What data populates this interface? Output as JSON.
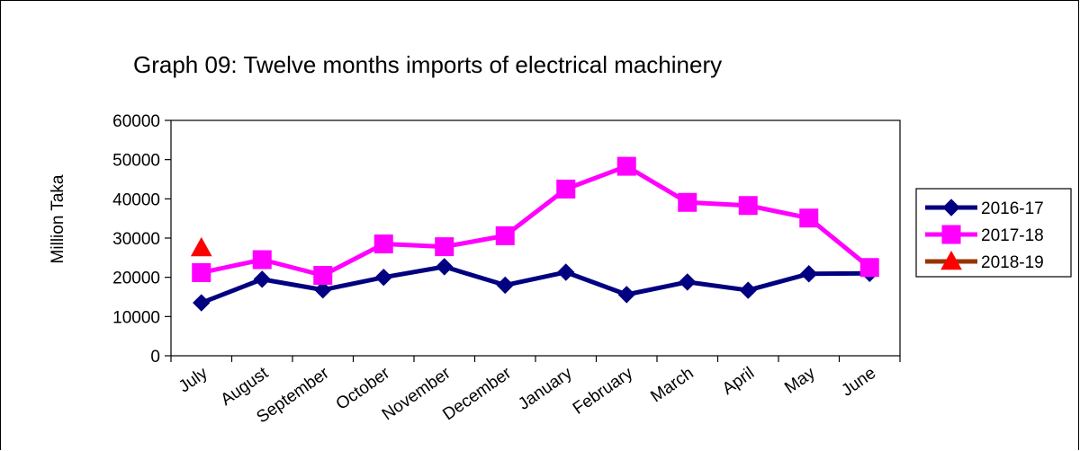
{
  "chart_data": {
    "type": "line",
    "title": "Graph 09: Twelve months imports of electrical machinery",
    "xlabel": "",
    "ylabel": "Million Taka",
    "ylim": [
      0,
      60000
    ],
    "yticks": [
      0,
      10000,
      20000,
      30000,
      40000,
      50000,
      60000
    ],
    "categories": [
      "July",
      "August",
      "September",
      "October",
      "November",
      "December",
      "January",
      "February",
      "March",
      "April",
      "May",
      "June"
    ],
    "legend_position": "right",
    "series": [
      {
        "name": "2016-17",
        "color": "#000080",
        "marker": "diamond",
        "values": [
          13500,
          19500,
          16800,
          20000,
          22700,
          18000,
          21300,
          15600,
          18800,
          16700,
          20900,
          21000
        ]
      },
      {
        "name": "2017-18",
        "color": "#ff00ff",
        "marker": "square",
        "values": [
          21200,
          24500,
          20500,
          28500,
          27800,
          30600,
          42500,
          48300,
          39100,
          38300,
          35100,
          22500
        ]
      },
      {
        "name": "2018-19",
        "color": "#993300",
        "marker_color": "#ff0000",
        "marker": "triangle",
        "values": [
          27500,
          null,
          null,
          null,
          null,
          null,
          null,
          null,
          null,
          null,
          null,
          null
        ]
      }
    ]
  }
}
